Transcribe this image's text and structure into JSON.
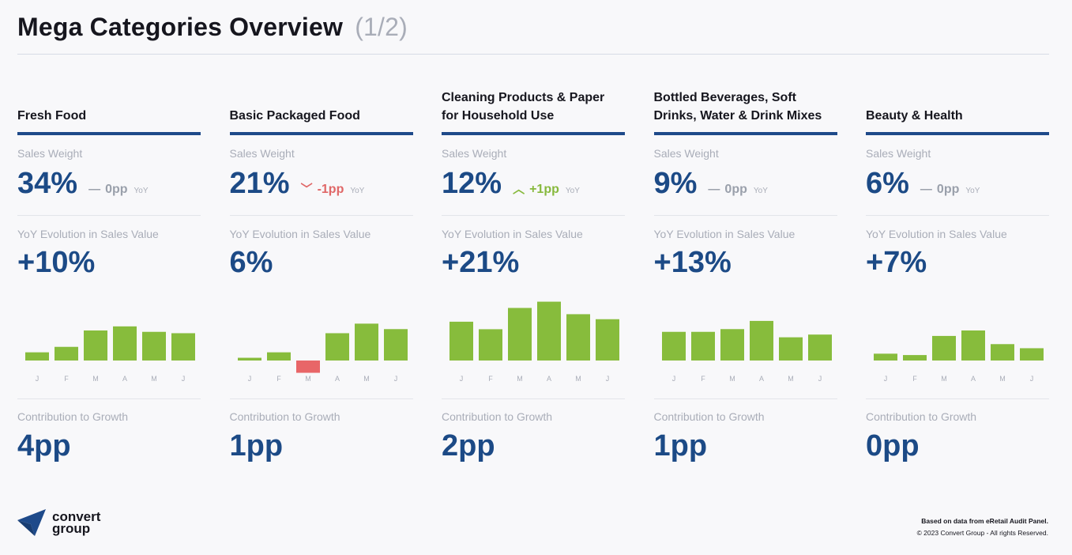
{
  "header": {
    "title": "Mega Categories Overview",
    "subtitle": "(1/2)"
  },
  "labels": {
    "sales_weight": "Sales Weight",
    "yoy_evolution": "YoY Evolution in Sales Value",
    "contribution": "Contribution to Growth",
    "yoy_tag": "YoY"
  },
  "colors": {
    "bar_positive": "#87bc3c",
    "bar_negative": "#e86668",
    "accent": "#1e4a8a",
    "month_label": "#a9adb8"
  },
  "categories": [
    {
      "name": "Fresh Food",
      "sales_weight": "34%",
      "delta": {
        "direction": "flat",
        "icon": "dash-icon",
        "value": "0pp"
      },
      "yoy_evolution": "+10%",
      "contribution": "4pp",
      "chart_data": {
        "type": "bar",
        "categories": [
          "J",
          "F",
          "M",
          "A",
          "M",
          "J"
        ],
        "values": [
          3,
          5,
          11,
          12.5,
          10.5,
          10
        ],
        "ylim": [
          -5,
          22
        ]
      }
    },
    {
      "name": "Basic Packaged Food",
      "sales_weight": "21%",
      "delta": {
        "direction": "down",
        "icon": "chevron-down-icon",
        "value": "-1pp"
      },
      "yoy_evolution": "6%",
      "contribution": "1pp",
      "chart_data": {
        "type": "bar",
        "categories": [
          "J",
          "F",
          "M",
          "A",
          "M",
          "J"
        ],
        "values": [
          1,
          3,
          -4.5,
          10,
          13.5,
          11.5
        ],
        "ylim": [
          -5,
          22
        ]
      }
    },
    {
      "name": "Cleaning Products & Paper for Household Use",
      "sales_weight": "12%",
      "delta": {
        "direction": "up",
        "icon": "chevron-up-icon",
        "value": "+1pp"
      },
      "yoy_evolution": "+21%",
      "contribution": "2pp",
      "chart_data": {
        "type": "bar",
        "categories": [
          "J",
          "F",
          "M",
          "A",
          "M",
          "J"
        ],
        "values": [
          15.5,
          12.5,
          21,
          23.5,
          18.5,
          16.5
        ],
        "ylim": [
          -5,
          24
        ]
      }
    },
    {
      "name": "Bottled Beverages, Soft Drinks, Water & Drink Mixes",
      "sales_weight": "9%",
      "delta": {
        "direction": "flat",
        "icon": "dash-icon",
        "value": "0pp"
      },
      "yoy_evolution": "+13%",
      "contribution": "1pp",
      "chart_data": {
        "type": "bar",
        "categories": [
          "J",
          "F",
          "M",
          "A",
          "M",
          "J"
        ],
        "values": [
          10.5,
          10.5,
          11.5,
          14.5,
          8.5,
          9.5
        ],
        "ylim": [
          -5,
          22
        ]
      }
    },
    {
      "name": "Beauty & Health",
      "sales_weight": "6%",
      "delta": {
        "direction": "flat",
        "icon": "dash-icon",
        "value": "0pp"
      },
      "yoy_evolution": "+7%",
      "contribution": "0pp",
      "chart_data": {
        "type": "bar",
        "categories": [
          "J",
          "F",
          "M",
          "A",
          "M",
          "J"
        ],
        "values": [
          2.5,
          2,
          9,
          11,
          6,
          4.5
        ],
        "ylim": [
          -5,
          22
        ]
      }
    }
  ],
  "footer": {
    "logo_line1": "convert",
    "logo_line2": "group",
    "source": "Based on data from eRetail Audit Panel.",
    "copyright": "© 2023 Convert Group - All rights Reserved."
  }
}
